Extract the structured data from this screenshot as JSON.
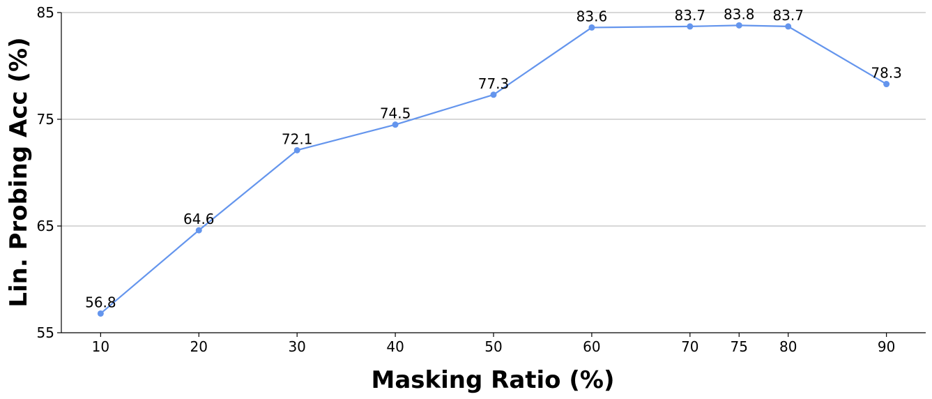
{
  "chart_data": {
    "type": "line",
    "xlabel": "Masking Ratio (%)",
    "ylabel": "Lin. Probing Acc (%)",
    "x": [
      10,
      20,
      30,
      40,
      50,
      60,
      70,
      75,
      80,
      90
    ],
    "x_tick_labels": [
      "10",
      "20",
      "30",
      "40",
      "50",
      "60",
      "70",
      "75",
      "80",
      "90"
    ],
    "series": [
      {
        "values": [
          56.8,
          64.6,
          72.1,
          74.5,
          77.3,
          83.6,
          83.7,
          83.8,
          83.7,
          78.3
        ],
        "labels": [
          "56.8",
          "64.6",
          "72.1",
          "74.5",
          "77.3",
          "83.6",
          "83.7",
          "83.8",
          "83.7",
          "78.3"
        ],
        "color": "#6495ED"
      }
    ],
    "xlim": [
      6,
      94
    ],
    "ylim": [
      55,
      85
    ],
    "y_ticks": [
      55,
      65,
      75,
      85
    ],
    "y_tick_labels": [
      "55",
      "65",
      "75",
      "85"
    ],
    "grid": "horizontal",
    "grid_color": "#b0b0b0"
  }
}
